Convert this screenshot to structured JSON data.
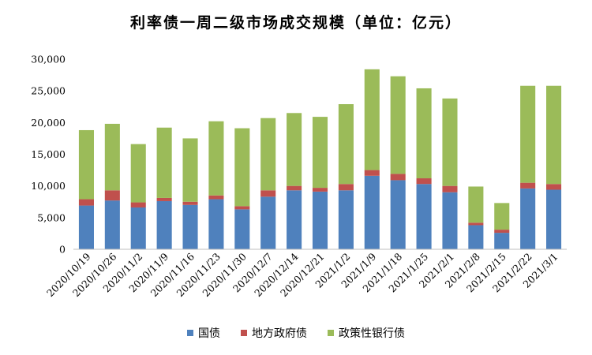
{
  "chart_data": {
    "type": "bar",
    "stacked": true,
    "title": "利率债一周二级市场成交规模（单位：亿元）",
    "xlabel": "",
    "ylabel": "",
    "ylim": [
      0,
      30000
    ],
    "yticks": [
      "0",
      "5,000",
      "10,000",
      "15,000",
      "20,000",
      "25,000",
      "30,000"
    ],
    "ytick_values": [
      0,
      5000,
      10000,
      15000,
      20000,
      25000,
      30000
    ],
    "grid": false,
    "legend_position": "bottom",
    "categories": [
      "2020/10/19",
      "2020/10/26",
      "2020/11/2",
      "2020/11/9",
      "2020/11/16",
      "2020/11/23",
      "2020/11/30",
      "2020/12/7",
      "2020/12/14",
      "2020/12/21",
      "2021/1/2",
      "2021/1/9",
      "2021/1/18",
      "2021/1/25",
      "2021/2/1",
      "2021/2/8",
      "2021/2/15",
      "2021/2/22",
      "2021/3/1"
    ],
    "series": [
      {
        "name": "国债",
        "color": "#4F81BD",
        "values": [
          6900,
          7700,
          6600,
          7600,
          7000,
          7900,
          6300,
          8300,
          9300,
          9100,
          9300,
          11600,
          10900,
          10300,
          9000,
          3800,
          2600,
          9600,
          9400
        ]
      },
      {
        "name": "地方政府债",
        "color": "#C0504D",
        "values": [
          1000,
          1600,
          800,
          500,
          500,
          600,
          500,
          1000,
          700,
          600,
          1000,
          900,
          1000,
          900,
          1000,
          400,
          500,
          900,
          900
        ]
      },
      {
        "name": "政策性银行债",
        "color": "#9BBB59",
        "values": [
          10900,
          10500,
          9200,
          11100,
          10000,
          11700,
          12300,
          11400,
          11500,
          11200,
          12600,
          15900,
          15400,
          14200,
          13800,
          5700,
          4200,
          15300,
          15500
        ]
      }
    ]
  }
}
